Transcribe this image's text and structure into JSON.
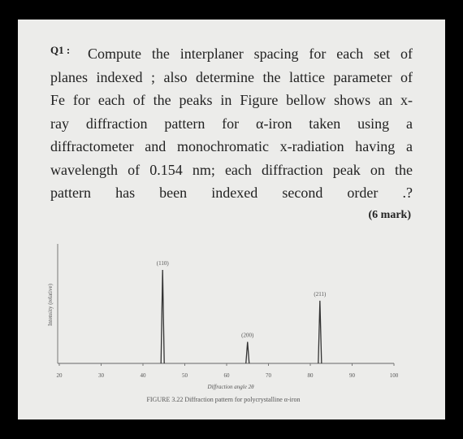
{
  "question": {
    "label": "Q1 :",
    "lines": [
      "Compute the interplaner spacing for each set of",
      "planes indexed ; also determine the lattice parameter of",
      "Fe for each of the peaks in Figure bellow shows an x-",
      "ray diffraction pattern for α-iron taken using a",
      "diffractometer and monochromatic x-radiation having a",
      "wavelength of 0.154 nm; each diffraction peak on the",
      "pattern has been indexed second order .?"
    ]
  },
  "marks": "(6 mark)",
  "chart_data": {
    "type": "line",
    "x": [
      44.7,
      65.0,
      82.3
    ],
    "values": [
      100,
      23,
      67
    ],
    "peak_labels": [
      "(110)",
      "(200)",
      "(211)"
    ],
    "xlim": [
      20,
      100
    ],
    "xticks": [
      20,
      30,
      40,
      50,
      60,
      70,
      80,
      90,
      100
    ],
    "xlabel": "Diffraction angle 2θ",
    "ylabel": "Intensity (relative)",
    "caption": "FIGURE 3.22 Diffraction pattern for polycrystalline α-iron",
    "color": "#333333"
  }
}
